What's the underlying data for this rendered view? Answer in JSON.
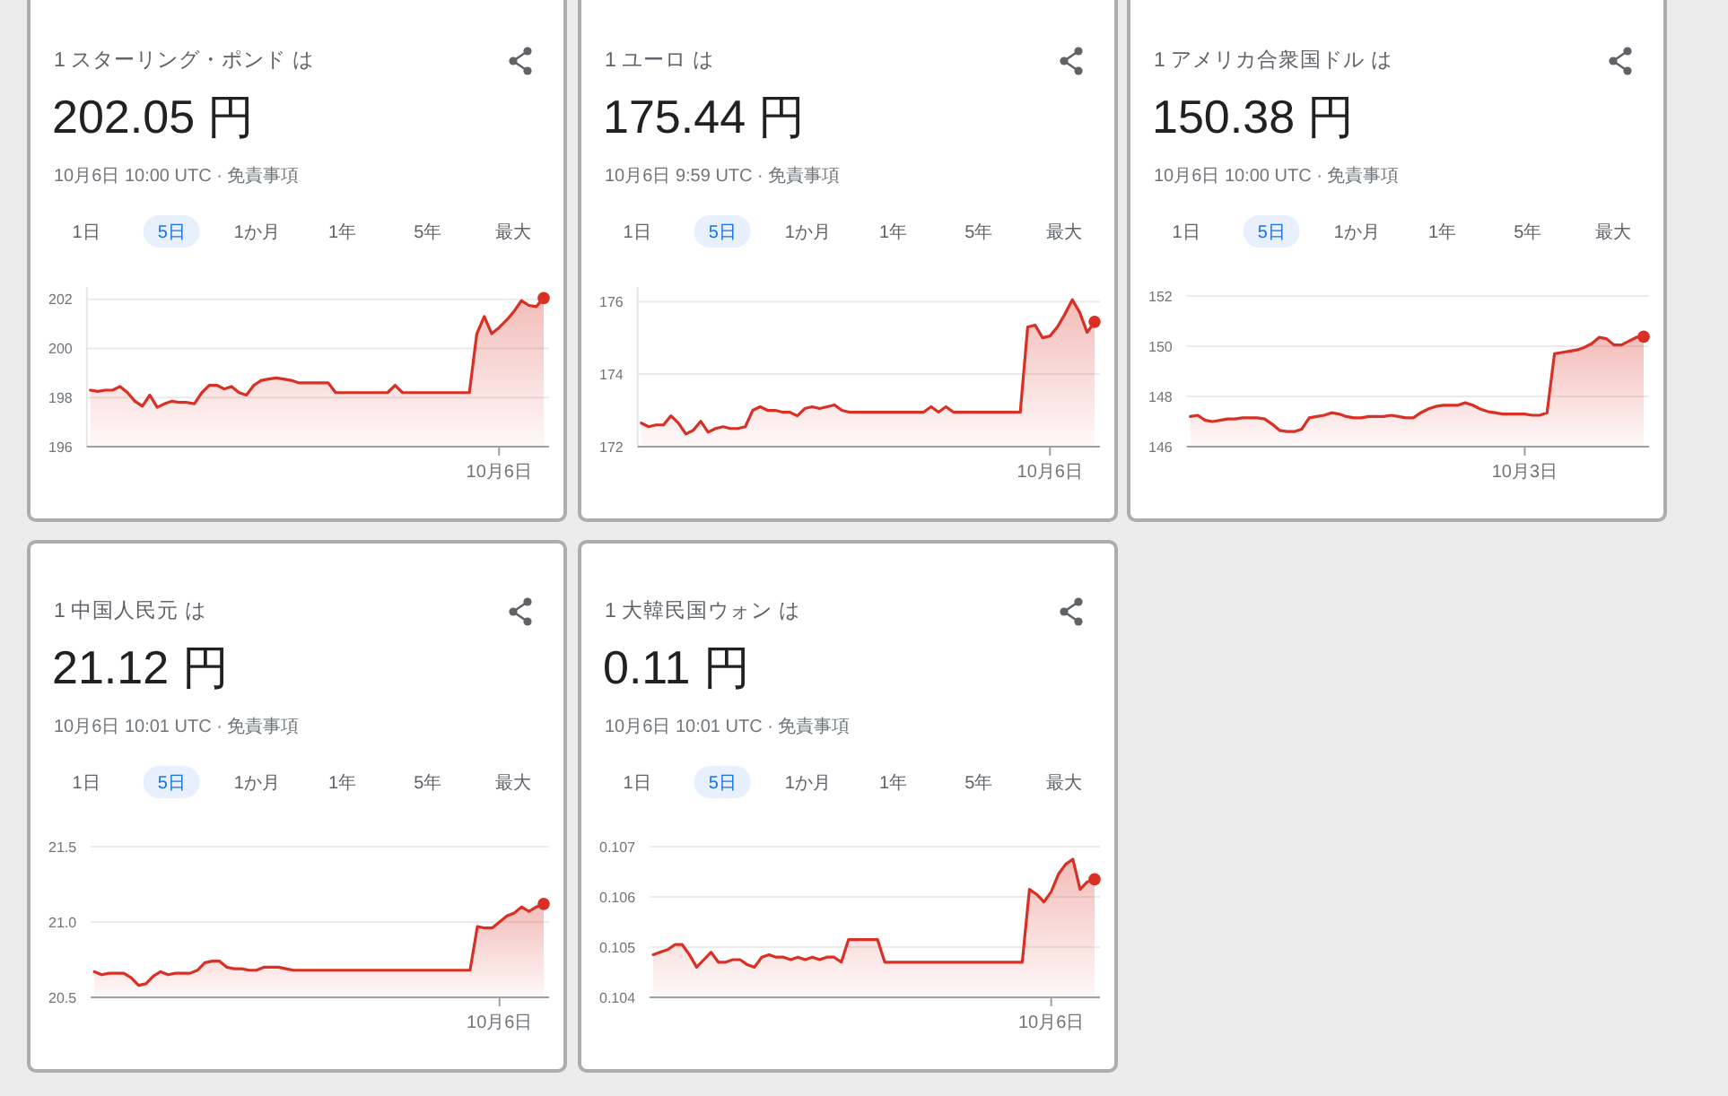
{
  "chart_data": [
    {
      "type": "area",
      "title": "1 スターリング・ポンド は",
      "subtitle": "202.05 円",
      "annotations": [
        "10月6日 10:00 UTC · 免責事項",
        "1日",
        "5日",
        "1か月",
        "1年",
        "5年",
        "最大"
      ],
      "categories": [
        null,
        null,
        null,
        null,
        null,
        null,
        null,
        null,
        null,
        null,
        null,
        null,
        null,
        null,
        null,
        null,
        null,
        null,
        null,
        null,
        null,
        null,
        null,
        null,
        null,
        null,
        null,
        null,
        null,
        null,
        null,
        null,
        null,
        null,
        null,
        null,
        null,
        null,
        null,
        null,
        null,
        null,
        null,
        null,
        null,
        null,
        null,
        null,
        null,
        null,
        null,
        null,
        null,
        null,
        null,
        "10月6日",
        null,
        null,
        null,
        null,
        null,
        null
      ],
      "color": "#d93025",
      "values": [
        198.3,
        198.25,
        198.3,
        198.3,
        198.45,
        198.2,
        197.85,
        197.65,
        198.1,
        197.6,
        197.75,
        197.85,
        197.8,
        197.8,
        197.75,
        198.2,
        198.5,
        198.5,
        198.35,
        198.45,
        198.2,
        198.1,
        198.5,
        198.7,
        198.75,
        198.8,
        198.75,
        198.7,
        198.6,
        198.6,
        198.6,
        198.6,
        198.6,
        198.2,
        198.2,
        198.2,
        198.2,
        198.2,
        198.2,
        198.2,
        198.2,
        198.5,
        198.2,
        198.2,
        198.2,
        198.2,
        198.2,
        198.2,
        198.2,
        198.2,
        198.2,
        198.2,
        200.6,
        201.3,
        200.6,
        200.85,
        201.15,
        201.5,
        201.95,
        201.75,
        201.7,
        202.05
      ],
      "ylim": [
        196,
        202.5
      ],
      "yticks": [
        196,
        198,
        200,
        202
      ],
      "grid": "y"
    },
    {
      "type": "area",
      "title": "1 ユーロ は",
      "subtitle": "175.44 円",
      "annotations": [
        "10月6日 9:59 UTC · 免責事項",
        "1日",
        "5日",
        "1か月",
        "1年",
        "5年",
        "最大"
      ],
      "categories": [
        null,
        null,
        null,
        null,
        null,
        null,
        null,
        null,
        null,
        null,
        null,
        null,
        null,
        null,
        null,
        null,
        null,
        null,
        null,
        null,
        null,
        null,
        null,
        null,
        null,
        null,
        null,
        null,
        null,
        null,
        null,
        null,
        null,
        null,
        null,
        null,
        null,
        null,
        null,
        null,
        null,
        null,
        null,
        null,
        null,
        null,
        null,
        null,
        null,
        null,
        null,
        null,
        null,
        null,
        null,
        "10月6日",
        null,
        null,
        null,
        null,
        null,
        null
      ],
      "color": "#d93025",
      "values": [
        172.65,
        172.55,
        172.6,
        172.6,
        172.85,
        172.65,
        172.35,
        172.45,
        172.7,
        172.4,
        172.5,
        172.55,
        172.5,
        172.5,
        172.55,
        173.0,
        173.1,
        173.0,
        173.0,
        172.95,
        172.95,
        172.85,
        173.05,
        173.1,
        173.05,
        173.1,
        173.15,
        173.0,
        172.95,
        172.95,
        172.95,
        172.95,
        172.95,
        172.95,
        172.95,
        172.95,
        172.95,
        172.95,
        172.95,
        173.1,
        172.95,
        173.1,
        172.95,
        172.95,
        172.95,
        172.95,
        172.95,
        172.95,
        172.95,
        172.95,
        172.95,
        172.95,
        175.3,
        175.35,
        175.0,
        175.05,
        175.3,
        175.65,
        176.05,
        175.7,
        175.15,
        175.44
      ],
      "ylim": [
        172,
        176.4
      ],
      "yticks": [
        172,
        174,
        176
      ],
      "grid": "y"
    },
    {
      "type": "area",
      "title": "1 アメリカ合衆国ドル は",
      "subtitle": "150.38 円",
      "annotations": [
        "10月6日 10:00 UTC · 免責事項",
        "1日",
        "5日",
        "1か月",
        "1年",
        "5年",
        "最大"
      ],
      "categories": [
        null,
        null,
        null,
        null,
        null,
        null,
        null,
        null,
        null,
        null,
        null,
        null,
        null,
        null,
        null,
        null,
        null,
        null,
        null,
        null,
        null,
        null,
        null,
        null,
        null,
        null,
        null,
        null,
        null,
        null,
        null,
        null,
        null,
        null,
        null,
        null,
        null,
        null,
        null,
        null,
        null,
        null,
        null,
        null,
        null,
        "10月3日",
        null,
        null,
        null,
        null,
        null,
        null,
        null,
        null,
        null,
        null,
        null,
        null,
        null,
        null,
        null,
        null
      ],
      "color": "#d93025",
      "values": [
        147.2,
        147.25,
        147.05,
        147.0,
        147.05,
        147.1,
        147.1,
        147.15,
        147.15,
        147.15,
        147.1,
        146.9,
        146.65,
        146.6,
        146.6,
        146.7,
        147.15,
        147.2,
        147.25,
        147.35,
        147.3,
        147.2,
        147.15,
        147.15,
        147.2,
        147.2,
        147.2,
        147.25,
        147.2,
        147.15,
        147.15,
        147.35,
        147.5,
        147.6,
        147.65,
        147.65,
        147.65,
        147.75,
        147.65,
        147.5,
        147.4,
        147.35,
        147.3,
        147.3,
        147.3,
        147.3,
        147.25,
        147.25,
        147.35,
        149.7,
        149.75,
        149.8,
        149.85,
        149.95,
        150.1,
        150.35,
        150.3,
        150.05,
        150.05,
        150.2,
        150.35,
        150.38
      ],
      "ylim": [
        146,
        152
      ],
      "yticks": [
        146,
        148,
        150,
        152
      ],
      "grid": "y"
    },
    {
      "type": "area",
      "title": "1 中国人民元 は",
      "subtitle": "21.12 円",
      "annotations": [
        "10月6日 10:01 UTC · 免責事項",
        "1日",
        "5日",
        "1か月",
        "1年",
        "5年",
        "最大"
      ],
      "categories": [
        null,
        null,
        null,
        null,
        null,
        null,
        null,
        null,
        null,
        null,
        null,
        null,
        null,
        null,
        null,
        null,
        null,
        null,
        null,
        null,
        null,
        null,
        null,
        null,
        null,
        null,
        null,
        null,
        null,
        null,
        null,
        null,
        null,
        null,
        null,
        null,
        null,
        null,
        null,
        null,
        null,
        null,
        null,
        null,
        null,
        null,
        null,
        null,
        null,
        null,
        null,
        null,
        null,
        null,
        null,
        "10月6日",
        null,
        null,
        null,
        null,
        null,
        null
      ],
      "color": "#d93025",
      "values": [
        20.67,
        20.65,
        20.66,
        20.66,
        20.66,
        20.63,
        20.58,
        20.59,
        20.64,
        20.67,
        20.65,
        20.66,
        20.66,
        20.66,
        20.68,
        20.73,
        20.74,
        20.74,
        20.7,
        20.69,
        20.69,
        20.68,
        20.68,
        20.7,
        20.7,
        20.7,
        20.69,
        20.68,
        20.68,
        20.68,
        20.68,
        20.68,
        20.68,
        20.68,
        20.68,
        20.68,
        20.68,
        20.68,
        20.68,
        20.68,
        20.68,
        20.68,
        20.68,
        20.68,
        20.68,
        20.68,
        20.68,
        20.68,
        20.68,
        20.68,
        20.68,
        20.68,
        20.97,
        20.96,
        20.96,
        21.0,
        21.04,
        21.06,
        21.1,
        21.07,
        21.1,
        21.12
      ],
      "ylim": [
        20.5,
        21.5
      ],
      "yticks": [
        20.5,
        {
          "value": 21,
          "label": "21.0"
        },
        21.5
      ],
      "grid": "y"
    },
    {
      "type": "area",
      "title": "1 大韓民国ウォン は",
      "subtitle": "0.11 円",
      "annotations": [
        "10月6日 10:01 UTC · 免責事項",
        "1日",
        "5日",
        "1か月",
        "1年",
        "5年",
        "最大"
      ],
      "categories": [
        null,
        null,
        null,
        null,
        null,
        null,
        null,
        null,
        null,
        null,
        null,
        null,
        null,
        null,
        null,
        null,
        null,
        null,
        null,
        null,
        null,
        null,
        null,
        null,
        null,
        null,
        null,
        null,
        null,
        null,
        null,
        null,
        null,
        null,
        null,
        null,
        null,
        null,
        null,
        null,
        null,
        null,
        null,
        null,
        null,
        null,
        null,
        null,
        null,
        null,
        null,
        null,
        null,
        null,
        null,
        "10月6日",
        null,
        null,
        null,
        null,
        null,
        null
      ],
      "color": "#d93025",
      "values": [
        0.10485,
        0.1049,
        0.10495,
        0.10505,
        0.10505,
        0.10485,
        0.1046,
        0.10475,
        0.1049,
        0.1047,
        0.1047,
        0.10475,
        0.10475,
        0.10465,
        0.1046,
        0.1048,
        0.10485,
        0.1048,
        0.1048,
        0.10475,
        0.1048,
        0.10475,
        0.1048,
        0.10475,
        0.1048,
        0.1048,
        0.1047,
        0.10515,
        0.10515,
        0.10515,
        0.10515,
        0.10515,
        0.1047,
        0.1047,
        0.1047,
        0.1047,
        0.1047,
        0.1047,
        0.1047,
        0.1047,
        0.1047,
        0.1047,
        0.1047,
        0.1047,
        0.1047,
        0.1047,
        0.1047,
        0.1047,
        0.1047,
        0.1047,
        0.1047,
        0.1047,
        0.10615,
        0.10605,
        0.1059,
        0.1061,
        0.10645,
        0.10665,
        0.10675,
        0.10615,
        0.1063,
        0.10635
      ],
      "ylim": [
        0.104,
        0.107
      ],
      "yticks": [
        0.104,
        0.105,
        0.106,
        0.107
      ],
      "grid": "y"
    }
  ]
}
